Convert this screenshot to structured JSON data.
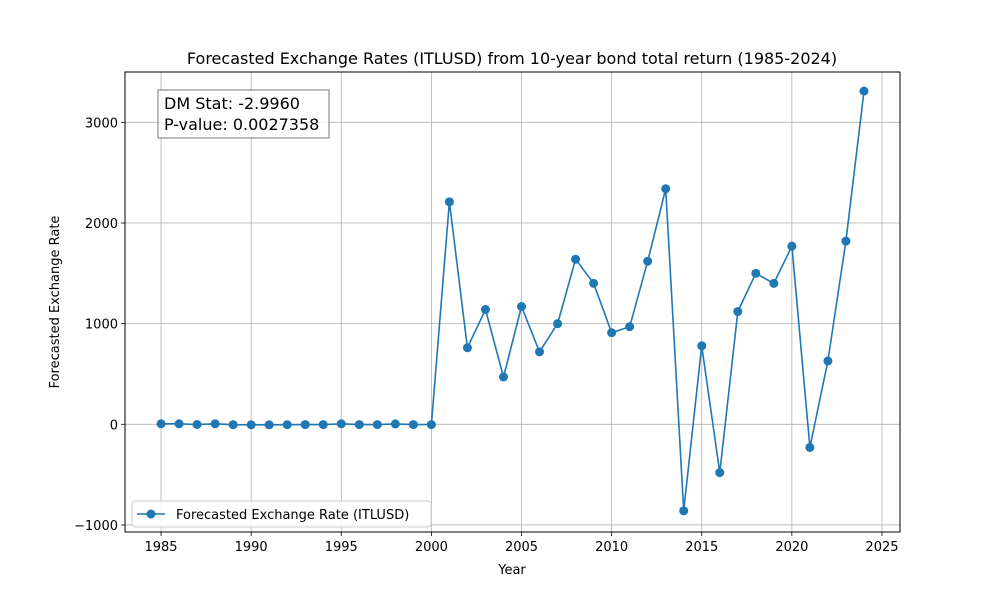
{
  "chart_data": {
    "type": "line",
    "title": "Forecasted Exchange Rates (ITLUSD) from 10-year bond total return (1985-2024)",
    "xlabel": "Year",
    "ylabel": "Forecasted Exchange Rate",
    "xlim": [
      1983,
      2026
    ],
    "ylim": [
      -1070,
      3500
    ],
    "xticks": [
      1985,
      1990,
      1995,
      2000,
      2005,
      2010,
      2015,
      2020,
      2025
    ],
    "yticks": [
      -1000,
      0,
      1000,
      2000,
      3000
    ],
    "ytick_labels": [
      "−1000",
      "0",
      "1000",
      "2000",
      "3000"
    ],
    "grid": true,
    "legend_position": "lower-left",
    "annotation": {
      "line1": "DM Stat: -2.9960",
      "line2": "P-value: 0.0027358",
      "position": "upper-left"
    },
    "series": [
      {
        "name": "Forecasted Exchange Rate (ITLUSD)",
        "color": "#1f77b4",
        "x": [
          1985,
          1986,
          1987,
          1988,
          1989,
          1990,
          1991,
          1992,
          1993,
          1994,
          1995,
          1996,
          1997,
          1998,
          1999,
          2000,
          2001,
          2002,
          2003,
          2004,
          2005,
          2006,
          2007,
          2008,
          2009,
          2010,
          2011,
          2012,
          2013,
          2014,
          2015,
          2016,
          2017,
          2018,
          2019,
          2020,
          2021,
          2022,
          2023,
          2024
        ],
        "y": [
          5,
          5,
          -2,
          5,
          -4,
          -5,
          -5,
          -4,
          -3,
          -3,
          5,
          -3,
          -3,
          4,
          -3,
          -3,
          2210,
          760,
          1140,
          470,
          1170,
          720,
          1000,
          1640,
          1400,
          910,
          970,
          1620,
          2340,
          -860,
          780,
          -480,
          1120,
          1500,
          1400,
          1770,
          -230,
          630,
          1820,
          3310
        ]
      }
    ]
  }
}
